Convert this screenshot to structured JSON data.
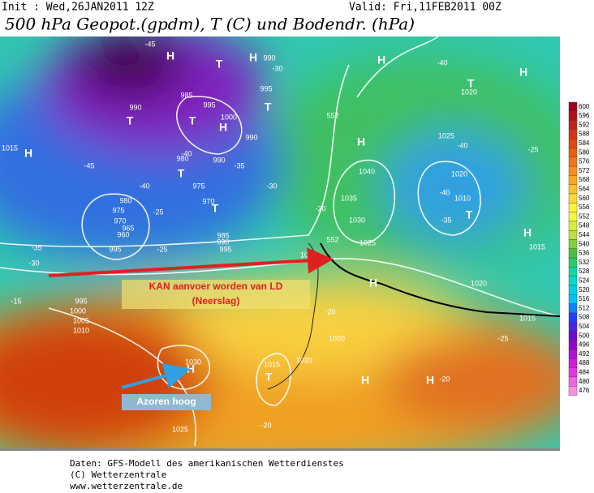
{
  "header": {
    "init": "Init : Wed,26JAN2011 12Z",
    "valid": "Valid: Fri,11FEB2011 00Z",
    "title": "500 hPa Geopot.(gpdm), T (C) und Bodendr. (hPa)"
  },
  "map": {
    "labels": [
      "H",
      "T",
      "H",
      "990",
      "995",
      "T",
      "985",
      "995",
      "1000",
      "H",
      "990",
      "T",
      "990",
      "T",
      "980",
      "990",
      "T",
      "975",
      "970",
      "T",
      "980",
      "975",
      "970",
      "965",
      "960",
      "995",
      "1015",
      "H",
      "985",
      "990",
      "995",
      "995",
      "1000",
      "1005",
      "1010",
      "1030",
      "H",
      "1025",
      "1015",
      "T",
      "1020",
      "H",
      "H",
      "1020",
      "T",
      "1025",
      "1020",
      "1010",
      "T",
      "H",
      "1040",
      "1035",
      "1030",
      "1025",
      "H",
      "H",
      "H",
      "H",
      "1015",
      "1020",
      "1015",
      "1010",
      "1020",
      "-20",
      "-20",
      "-25",
      "-40",
      "-40",
      "-45",
      "-45",
      "-40",
      "-40",
      "-35",
      "-30",
      "-30",
      "-20",
      "-35",
      "-30",
      "-15",
      "-25",
      "-25",
      "-35",
      "-40",
      "-20",
      "-25",
      "552",
      "552"
    ]
  },
  "annotations": {
    "arrow_text": "KAN aanvoer worden van LD",
    "arrow_subtext": "(Neerslag)",
    "high_label": "Azoren hoog"
  },
  "colorbar": {
    "levels": [
      600,
      596,
      592,
      588,
      584,
      580,
      576,
      572,
      568,
      564,
      560,
      556,
      552,
      548,
      544,
      540,
      536,
      532,
      528,
      524,
      520,
      516,
      512,
      508,
      504,
      500,
      496,
      492,
      488,
      484,
      480,
      476
    ]
  },
  "footer": {
    "line1": "Daten: GFS-Modell des amerikanischen Wetterdienstes",
    "line2": "(C) Wetterzentrale",
    "line3": "www.wetterzentrale.de"
  }
}
